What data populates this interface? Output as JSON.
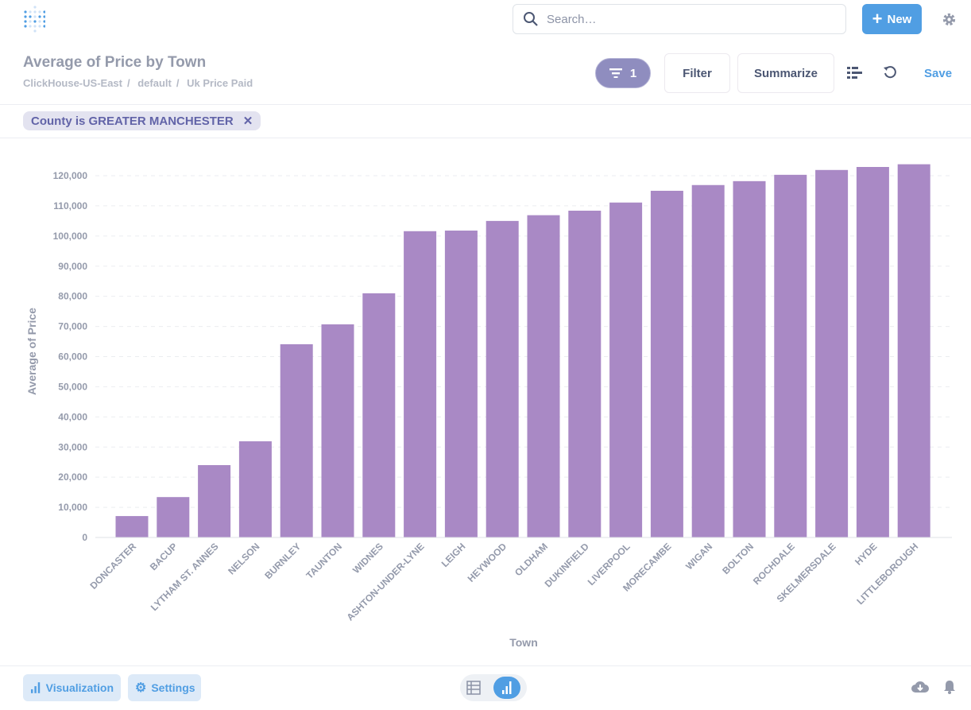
{
  "header": {
    "search_placeholder": "Search…",
    "new_label": "New"
  },
  "question": {
    "title": "Average of Price by Town",
    "breadcrumb": [
      "ClickHouse-US-East",
      "default",
      "Uk Price Paid"
    ]
  },
  "toolbar": {
    "filter_count": "1",
    "filter_label": "Filter",
    "summarize_label": "Summarize",
    "save_label": "Save"
  },
  "filters": [
    {
      "label": "County is GREATER MANCHESTER"
    }
  ],
  "footer": {
    "visualization_label": "Visualization",
    "settings_label": "Settings"
  },
  "colors": {
    "bar": "#a989c5",
    "accent": "#509ee3",
    "filter_pill": "#8f8dbf"
  },
  "chart_data": {
    "type": "bar",
    "xlabel": "Town",
    "ylabel": "Average of Price",
    "ylim": [
      0,
      120000
    ],
    "yticks": [
      "0",
      "10,000",
      "20,000",
      "30,000",
      "40,000",
      "50,000",
      "60,000",
      "70,000",
      "80,000",
      "90,000",
      "100,000",
      "110,000",
      "120,000"
    ],
    "categories": [
      "DONCASTER",
      "BACUP",
      "LYTHAM ST. ANNES",
      "NELSON",
      "BURNLEY",
      "TAUNTON",
      "WIDNES",
      "ASHTON-UNDER-LYNE",
      "LEIGH",
      "HEYWOOD",
      "OLDHAM",
      "DUKINFIELD",
      "LIVERPOOL",
      "MORECAMBE",
      "WIGAN",
      "BOLTON",
      "ROCHDALE",
      "SKELMERSDALE",
      "HYDE",
      "LITTLEBOROUGH"
    ],
    "values": [
      7100,
      13400,
      24000,
      31900,
      64100,
      70700,
      81000,
      101600,
      101800,
      105000,
      106900,
      108400,
      111100,
      115000,
      116900,
      118200,
      120300,
      121900,
      122900,
      123800
    ],
    "grid": true
  }
}
